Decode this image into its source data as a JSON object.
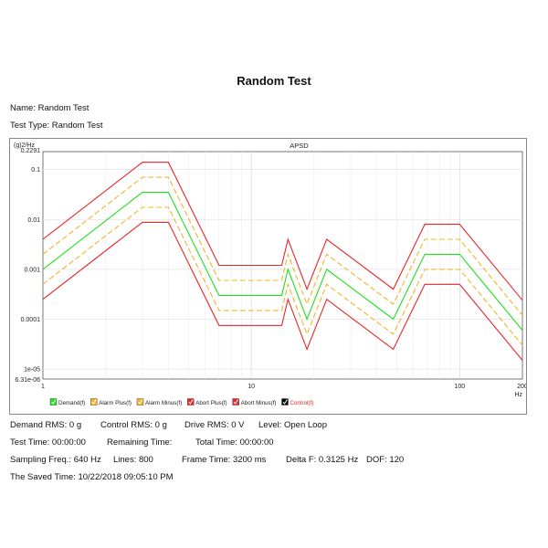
{
  "page": {
    "title": "Random Test",
    "name_line": "Name: Random Test",
    "type_line": "Test Type: Random Test"
  },
  "colors": {
    "demand": "#22e01e",
    "alarm": "#f5b428",
    "abort": "#e8262a",
    "control": "#000000"
  },
  "chart_data": {
    "type": "line",
    "title": "APSD",
    "xlabel": "Hz",
    "ylabel": "(g)2/Hz",
    "xscale": "log",
    "yscale": "log",
    "xlim": [
      1,
      200
    ],
    "ylim": [
      6.31e-06,
      0.2291
    ],
    "x_ticks": [
      {
        "value": 1,
        "label": "1"
      },
      {
        "value": 10,
        "label": "10"
      },
      {
        "value": 100,
        "label": "100"
      },
      {
        "value": 200,
        "label": "200"
      }
    ],
    "y_ticks": [
      {
        "value": 0.2291,
        "label": "0.2291"
      },
      {
        "value": 0.1,
        "label": "0.1"
      },
      {
        "value": 0.01,
        "label": "0.01"
      },
      {
        "value": 0.001,
        "label": "0.001"
      },
      {
        "value": 0.0001,
        "label": "0.0001"
      },
      {
        "value": 1e-05,
        "label": "1e-05"
      },
      {
        "value": 6.31e-06,
        "label": "6.31e-06"
      }
    ],
    "x": [
      1,
      3,
      4,
      7,
      14,
      15,
      18.5,
      23,
      48,
      68,
      100,
      200
    ],
    "series": [
      {
        "name": "Demand(f)",
        "color_key": "demand",
        "dashed": false,
        "values": [
          0.001,
          0.035,
          0.035,
          0.0003,
          0.0003,
          0.001,
          0.0001,
          0.001,
          0.0001,
          0.002,
          0.002,
          6e-05
        ]
      },
      {
        "name": "Alarm Plus(f)",
        "color_key": "alarm",
        "dashed": true,
        "values": [
          0.002,
          0.07,
          0.07,
          0.0006,
          0.0006,
          0.002,
          0.0002,
          0.002,
          0.0002,
          0.004,
          0.004,
          0.00012
        ]
      },
      {
        "name": "Alarm Minus(f)",
        "color_key": "alarm",
        "dashed": true,
        "values": [
          0.0005,
          0.0175,
          0.0175,
          0.00015,
          0.00015,
          0.0005,
          5e-05,
          0.0005,
          5e-05,
          0.001,
          0.001,
          3e-05
        ]
      },
      {
        "name": "Abort Plus(f)",
        "color_key": "abort",
        "dashed": false,
        "values": [
          0.004,
          0.14,
          0.14,
          0.0012,
          0.0012,
          0.004,
          0.0004,
          0.004,
          0.0004,
          0.008,
          0.008,
          0.00024
        ]
      },
      {
        "name": "Abort Minus(f)",
        "color_key": "abort",
        "dashed": false,
        "values": [
          0.00025,
          0.00875,
          0.00875,
          7.5e-05,
          7.5e-05,
          0.00025,
          2.5e-05,
          0.00025,
          2.5e-05,
          0.0005,
          0.0005,
          1.5e-05
        ]
      }
    ],
    "legend": [
      {
        "label": "Demand(f)",
        "color_key": "demand"
      },
      {
        "label": "Alarm Plus(f)",
        "color_key": "alarm"
      },
      {
        "label": "Alarm Minus(f)",
        "color_key": "alarm"
      },
      {
        "label": "Abort Plus(f)",
        "color_key": "abort"
      },
      {
        "label": "Abort Minus(f)",
        "color_key": "abort"
      },
      {
        "label": "Control(f)",
        "color_key": "control",
        "text_color": "#e8262a"
      }
    ],
    "legend_position": "bottom-left",
    "grid": true
  },
  "status": {
    "demand_rms": "Demand RMS: 0 g",
    "control_rms": "Control RMS: 0 g",
    "drive_rms": "Drive RMS: 0 V",
    "level": "Level: Open Loop",
    "test_time": "Test Time: 00:00:00",
    "remaining_time": "Remaining Time:",
    "total_time": "Total Time: 00:00:00",
    "sampling_freq": "Sampling Freq.: 640 Hz",
    "lines": "Lines: 800",
    "frame_time": "Frame Time: 3200 ms",
    "delta_f": "Delta F: 0.3125 Hz",
    "dof": "DOF: 120",
    "saved_time": "The Saved Time: 10/22/2018 09:05:10 PM"
  }
}
